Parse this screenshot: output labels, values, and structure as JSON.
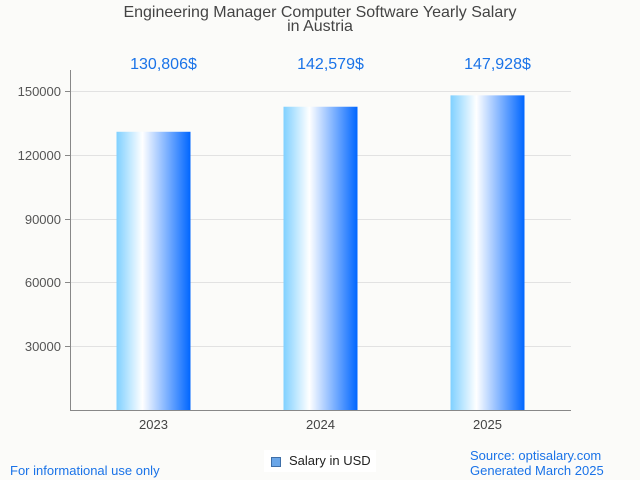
{
  "chart_data": {
    "type": "bar",
    "title": "Engineering Manager Computer Software Yearly Salary",
    "subtitle": "in Austria",
    "categories": [
      "2023",
      "2024",
      "2025"
    ],
    "series": [
      {
        "name": "Salary in USD",
        "values": [
          130806,
          142579,
          147928
        ]
      }
    ],
    "data_labels": [
      "130,806$",
      "142,579$",
      "147,928$"
    ],
    "xlabel": "",
    "ylabel": "",
    "ylim": [
      0,
      158000
    ],
    "yticks": [
      30000,
      60000,
      90000,
      120000,
      150000
    ],
    "ytick_labels": [
      "30000",
      "60000",
      "90000",
      "120000",
      "150000"
    ],
    "grid": true,
    "legend": "bottom-center",
    "colors": {
      "bar_left": "#7fd0ff",
      "bar_mid": "#ffffff",
      "bar_right": "#0066ff",
      "label": "#1a73e8",
      "grid": "#e2e2e2",
      "axis": "#888888"
    }
  },
  "footer": {
    "disclaimer": "For informational use only",
    "source": "Source: optisalary.com",
    "generated": "Generated March 2025"
  }
}
